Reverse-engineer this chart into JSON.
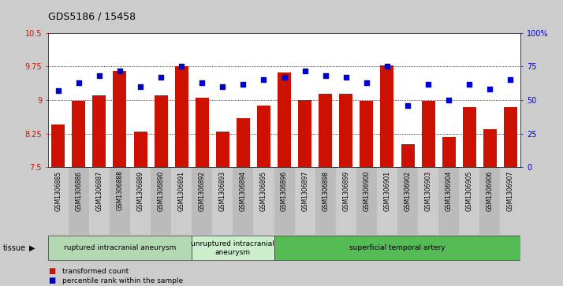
{
  "title": "GDS5186 / 15458",
  "samples": [
    "GSM1306885",
    "GSM1306886",
    "GSM1306887",
    "GSM1306888",
    "GSM1306889",
    "GSM1306890",
    "GSM1306891",
    "GSM1306892",
    "GSM1306893",
    "GSM1306894",
    "GSM1306895",
    "GSM1306896",
    "GSM1306897",
    "GSM1306898",
    "GSM1306899",
    "GSM1306900",
    "GSM1306901",
    "GSM1306902",
    "GSM1306903",
    "GSM1306904",
    "GSM1306905",
    "GSM1306906",
    "GSM1306907"
  ],
  "bar_values": [
    8.45,
    8.98,
    9.1,
    9.65,
    8.3,
    9.1,
    9.75,
    9.05,
    8.3,
    8.6,
    8.88,
    9.62,
    9.0,
    9.15,
    9.15,
    8.98,
    9.78,
    8.02,
    8.98,
    8.18,
    8.85,
    8.35,
    8.85
  ],
  "dot_values_pct": [
    57,
    63,
    68,
    72,
    60,
    67,
    75,
    63,
    60,
    62,
    65,
    67,
    72,
    68,
    67,
    63,
    75,
    46,
    62,
    50,
    62,
    58,
    65
  ],
  "bar_color": "#cc1100",
  "dot_color": "#0000cc",
  "ylim_left": [
    7.5,
    10.5
  ],
  "ylim_right": [
    0,
    100
  ],
  "yticks_left": [
    7.5,
    8.25,
    9.0,
    9.75,
    10.5
  ],
  "yticks_right": [
    0,
    25,
    50,
    75,
    100
  ],
  "ytick_labels_left": [
    "7.5",
    "8.25",
    "9",
    "9.75",
    "10.5"
  ],
  "ytick_labels_right": [
    "0",
    "25",
    "50",
    "75",
    "100%"
  ],
  "grid_lines": [
    8.25,
    9.0,
    9.75
  ],
  "groups": [
    {
      "label": "ruptured intracranial aneurysm",
      "start": 0,
      "end": 7,
      "color": "#b2d9b2"
    },
    {
      "label": "unruptured intracranial\naneurysm",
      "start": 7,
      "end": 11,
      "color": "#cceecc"
    },
    {
      "label": "superficial temporal artery",
      "start": 11,
      "end": 23,
      "color": "#55bb55"
    }
  ],
  "legend_bar_label": "transformed count",
  "legend_dot_label": "percentile rank within the sample",
  "tissue_label": "tissue",
  "bg_color": "#cccccc",
  "plot_bg_color": "#ffffff",
  "xtick_bg_even": "#cccccc",
  "xtick_bg_odd": "#bbbbbb"
}
